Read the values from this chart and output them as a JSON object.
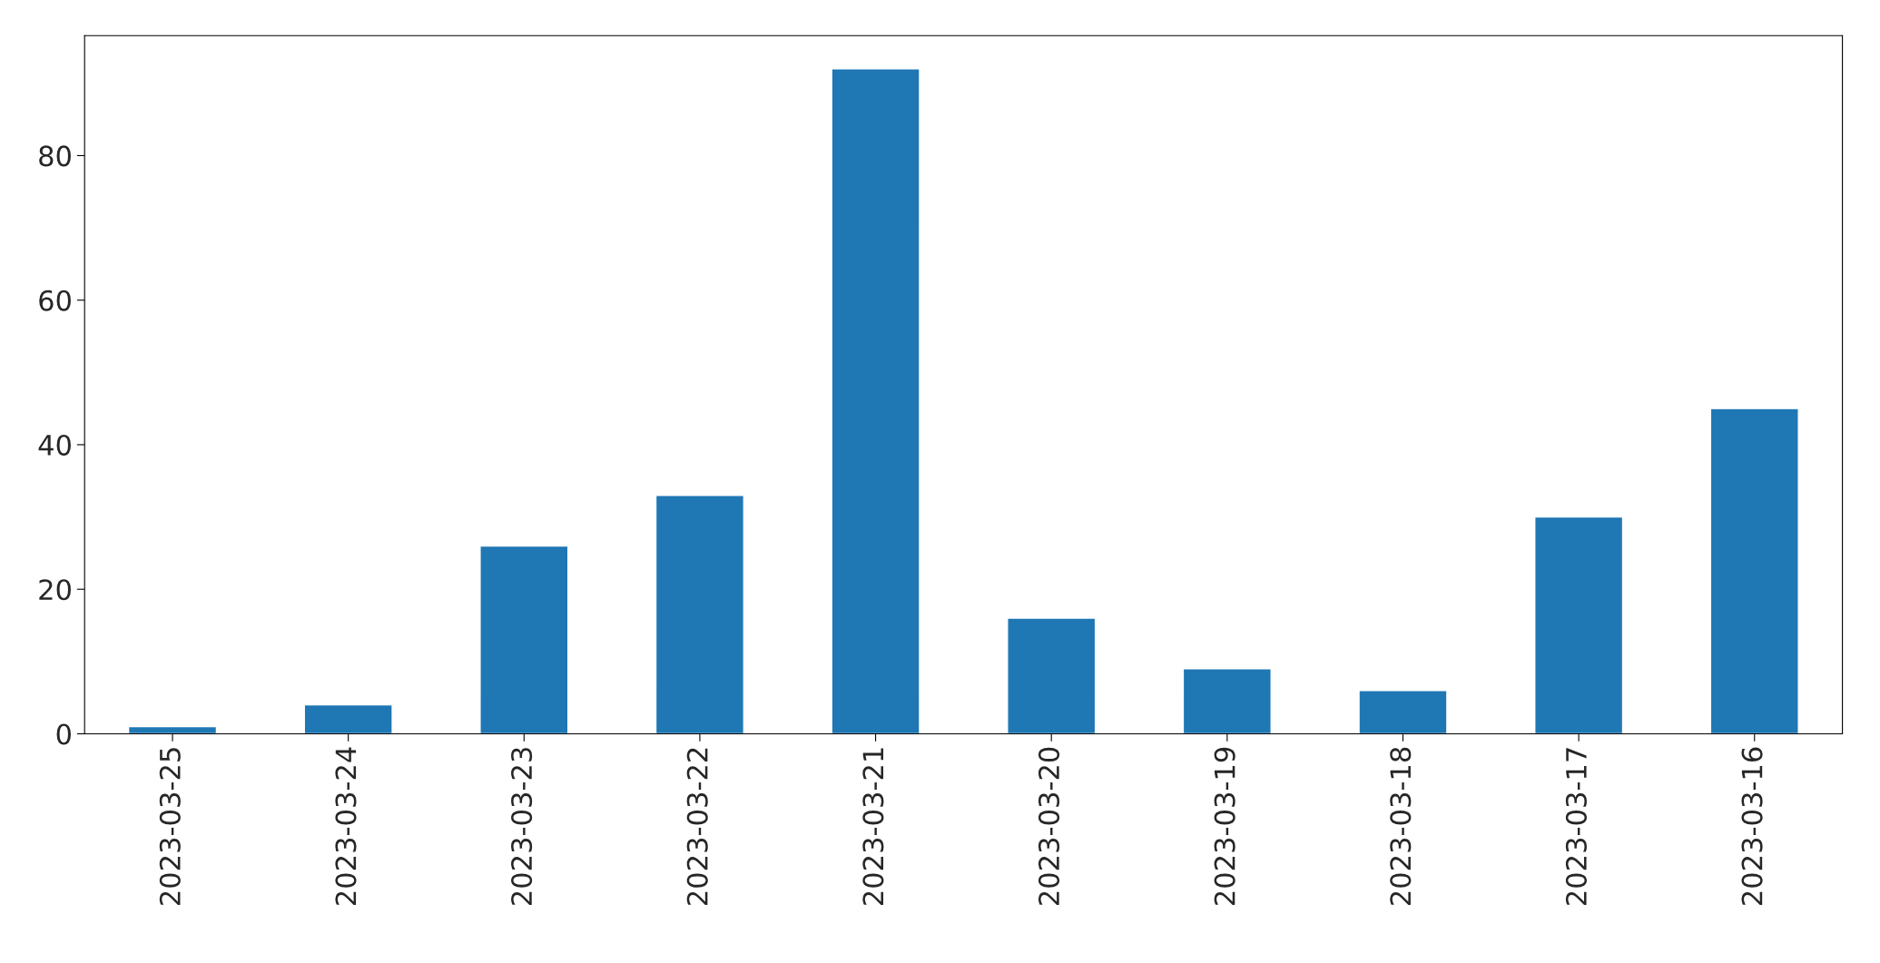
{
  "chart_data": {
    "type": "bar",
    "categories": [
      "2023-03-25",
      "2023-03-24",
      "2023-03-23",
      "2023-03-22",
      "2023-03-21",
      "2023-03-20",
      "2023-03-19",
      "2023-03-18",
      "2023-03-17",
      "2023-03-16"
    ],
    "values": [
      1,
      4,
      26,
      33,
      92,
      16,
      9,
      6,
      30,
      45
    ],
    "color": "#1f77b4",
    "ylim": [
      0,
      96.6
    ],
    "yticks": [
      0,
      20,
      40,
      60,
      80
    ],
    "grid": false,
    "legend": false
  }
}
